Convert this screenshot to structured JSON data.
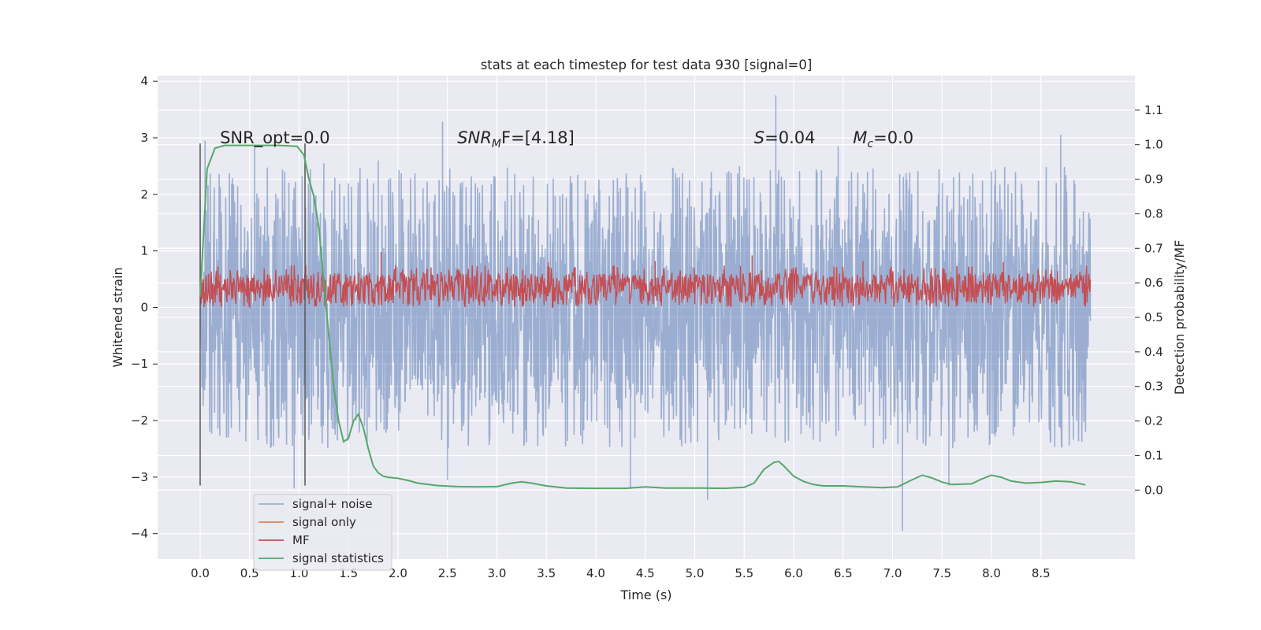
{
  "chart_data": {
    "type": "line",
    "title": "stats at each timestep for test data 930 [signal=0]",
    "xlabel": "Time (s)",
    "ylabel_left": "Whitened strain",
    "ylabel_right": "Detection probability/MF",
    "xlim": [
      -0.43,
      9.45
    ],
    "ylim_left": [
      -4.45,
      4.1
    ],
    "ylim_right": [
      -0.2,
      1.2
    ],
    "xticks": [
      0.0,
      0.5,
      1.0,
      1.5,
      2.0,
      2.5,
      3.0,
      3.5,
      4.0,
      4.5,
      5.0,
      5.5,
      6.0,
      6.5,
      7.0,
      7.5,
      8.0,
      8.5
    ],
    "xtick_labels": [
      "0.0",
      "0.5",
      "1.0",
      "1.5",
      "2.0",
      "2.5",
      "3.0",
      "3.5",
      "4.0",
      "4.5",
      "5.0",
      "5.5",
      "6.0",
      "6.5",
      "7.0",
      "7.5",
      "8.0",
      "8.5"
    ],
    "yticks_left": [
      -4,
      -3,
      -2,
      -1,
      0,
      1,
      2,
      3,
      4
    ],
    "ytick_labels_left": [
      "−4",
      "−3",
      "−2",
      "−1",
      "0",
      "1",
      "2",
      "3",
      "4"
    ],
    "yticks_right": [
      0.0,
      0.1,
      0.2,
      0.3,
      0.4,
      0.5,
      0.6,
      0.7,
      0.8,
      0.9,
      1.0,
      1.1
    ],
    "ytick_labels_right": [
      "0.0",
      "0.1",
      "0.2",
      "0.3",
      "0.4",
      "0.5",
      "0.6",
      "0.7",
      "0.8",
      "0.9",
      "1.0",
      "1.1"
    ],
    "grid": true,
    "legend_position": "lower-left",
    "annotations": {
      "snr_opt": {
        "text": "SNR_opt=0.0",
        "x": 0.2,
        "y": 3.0
      },
      "snr_mf": {
        "math": "SNR",
        "sub": "M",
        "suffix": "F=[4.18]",
        "x": 2.6,
        "y": 3.0
      },
      "s_stat": {
        "math": "S",
        "suffix": "=0.04",
        "x": 5.6,
        "y": 3.0
      },
      "chirp_mass": {
        "math": "M",
        "sub": "c",
        "suffix": "=0.0",
        "x": 6.6,
        "y": 3.0
      }
    },
    "vlines": [
      {
        "x": 0.0,
        "y_range": [
          -3.15,
          2.9
        ]
      },
      {
        "x": 1.06,
        "y_range": [
          -3.15,
          2.9
        ]
      }
    ],
    "series": [
      {
        "name": "signal+ noise",
        "axis": "left",
        "color": "#4c72b0",
        "alpha": 0.5,
        "t_range": [
          0.0,
          9.0
        ],
        "typical_range": [
          -1.6,
          1.6
        ],
        "spikes": [
          {
            "x": 0.05,
            "y": 2.95
          },
          {
            "x": 0.55,
            "y": 2.85
          },
          {
            "x": 1.25,
            "y": 2.55
          },
          {
            "x": 2.45,
            "y": 3.28
          },
          {
            "x": 2.5,
            "y": -3.05
          },
          {
            "x": 5.82,
            "y": 3.75
          },
          {
            "x": 7.1,
            "y": -3.95
          },
          {
            "x": 7.57,
            "y": -3.15
          },
          {
            "x": 5.13,
            "y": -3.4
          },
          {
            "x": 8.7,
            "y": 3.05
          },
          {
            "x": 0.95,
            "y": -3.2
          },
          {
            "x": 4.35,
            "y": -3.2
          },
          {
            "x": 1.8,
            "y": 2.6
          },
          {
            "x": 6.45,
            "y": 2.85
          }
        ]
      },
      {
        "name": "signal only",
        "axis": "left",
        "color": "#dd8452",
        "values": []
      },
      {
        "name": "MF",
        "axis": "left",
        "color": "#c44e52",
        "t_range": [
          0.0,
          9.0
        ],
        "typical_range": [
          0.0,
          0.6
        ],
        "peaks": [
          {
            "x": 1.83,
            "y": 0.98
          },
          {
            "x": 5.58,
            "y": 0.92
          },
          {
            "x": 6.7,
            "y": 0.82
          },
          {
            "x": 3.52,
            "y": 0.8
          },
          {
            "x": 4.6,
            "y": 0.82
          },
          {
            "x": 8.12,
            "y": 0.8
          }
        ]
      },
      {
        "name": "signal statistics",
        "axis": "right",
        "color": "#55a868",
        "x": [
          0.0,
          0.07,
          0.15,
          0.25,
          0.4,
          0.6,
          0.8,
          0.98,
          1.05,
          1.1,
          1.15,
          1.2,
          1.25,
          1.3,
          1.35,
          1.4,
          1.45,
          1.5,
          1.55,
          1.6,
          1.65,
          1.7,
          1.75,
          1.8,
          1.85,
          1.9,
          2.0,
          2.1,
          2.2,
          2.4,
          2.6,
          2.8,
          3.0,
          3.15,
          3.25,
          3.35,
          3.5,
          3.7,
          4.0,
          4.3,
          4.5,
          4.7,
          5.0,
          5.3,
          5.5,
          5.6,
          5.7,
          5.8,
          5.85,
          5.9,
          6.0,
          6.1,
          6.2,
          6.3,
          6.5,
          6.7,
          6.9,
          7.05,
          7.2,
          7.3,
          7.4,
          7.5,
          7.6,
          7.8,
          7.9,
          8.0,
          8.1,
          8.2,
          8.35,
          8.5,
          8.65,
          8.8,
          8.95
        ],
        "values": [
          0.56,
          0.93,
          0.99,
          0.998,
          0.998,
          0.998,
          0.998,
          0.995,
          0.97,
          0.9,
          0.85,
          0.76,
          0.6,
          0.45,
          0.3,
          0.2,
          0.14,
          0.15,
          0.2,
          0.22,
          0.18,
          0.12,
          0.07,
          0.05,
          0.04,
          0.037,
          0.034,
          0.028,
          0.02,
          0.013,
          0.01,
          0.009,
          0.01,
          0.02,
          0.024,
          0.02,
          0.012,
          0.006,
          0.005,
          0.005,
          0.009,
          0.006,
          0.006,
          0.005,
          0.008,
          0.02,
          0.06,
          0.08,
          0.083,
          0.07,
          0.04,
          0.025,
          0.016,
          0.012,
          0.012,
          0.009,
          0.007,
          0.009,
          0.03,
          0.043,
          0.035,
          0.023,
          0.016,
          0.018,
          0.032,
          0.043,
          0.037,
          0.026,
          0.02,
          0.022,
          0.026,
          0.024,
          0.015
        ]
      }
    ]
  }
}
